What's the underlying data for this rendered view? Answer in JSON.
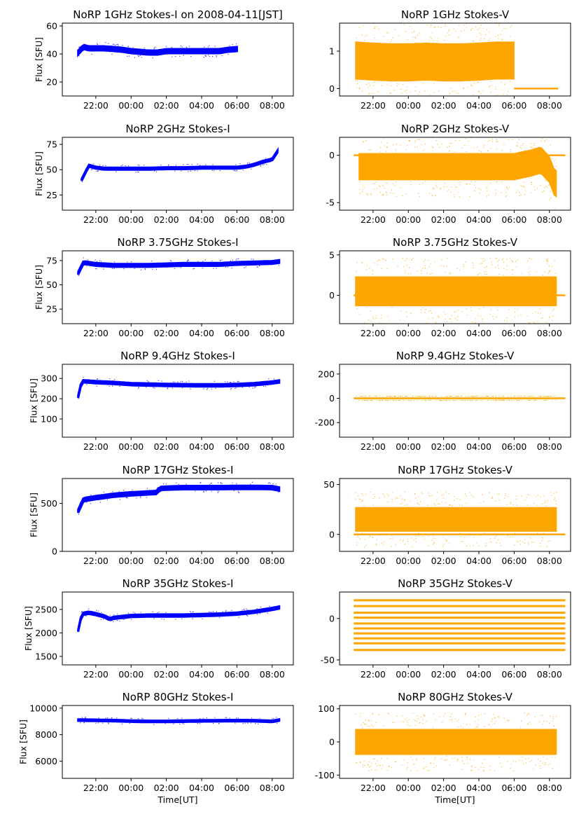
{
  "figure": {
    "xlabel": "Time[UT]",
    "ylabel": "Flux [SFU]",
    "xticks": [
      {
        "t": 22,
        "label": "22:00"
      },
      {
        "t": 24,
        "label": "00:00"
      },
      {
        "t": 26,
        "label": "02:00"
      },
      {
        "t": 28,
        "label": "04:00"
      },
      {
        "t": 30,
        "label": "06:00"
      },
      {
        "t": 32,
        "label": "08:00"
      }
    ],
    "xlim": [
      20.1,
      33.2
    ],
    "colors": {
      "stokes_i": "#0000ff",
      "stokes_v": "#ffa500"
    }
  },
  "chart_data": [
    {
      "type": "scatter",
      "title": "NoRP 1GHz Stokes-I on 2008-04-11[JST]",
      "stokes": "I",
      "ylim": [
        10,
        62
      ],
      "yticks": [
        20,
        40,
        60
      ],
      "x": [
        21.0,
        21.3,
        21.6,
        22.0,
        22.5,
        23.0,
        23.5,
        24.0,
        24.5,
        25.0,
        25.5,
        26.0,
        26.5,
        27.0,
        27.5,
        28.0,
        28.5,
        29.0,
        29.5,
        30.0
      ],
      "y": [
        41,
        45,
        44,
        44,
        44,
        43.5,
        43,
        42,
        41.5,
        41,
        41,
        42,
        42,
        42,
        42,
        42,
        42,
        42,
        43,
        43.5
      ],
      "spread": 1.5
    },
    {
      "type": "scatter",
      "title": "NoRP 1GHz Stokes-V",
      "stokes": "V",
      "ylim": [
        -0.2,
        1.75
      ],
      "yticks": [
        0,
        1
      ],
      "x": [
        21.0,
        22.0,
        23.0,
        24.0,
        25.0,
        26.0,
        27.0,
        28.0,
        29.0,
        30.0
      ],
      "y": [
        0.75,
        0.72,
        0.7,
        0.7,
        0.72,
        0.7,
        0.7,
        0.72,
        0.75,
        0.75
      ],
      "spread": 0.5,
      "xrange": [
        21.0,
        30.0
      ],
      "baseline": 0,
      "baseline_range": [
        30.0,
        32.5
      ]
    },
    {
      "type": "scatter",
      "title": "NoRP 2GHz Stokes-I",
      "stokes": "I",
      "ylim": [
        10,
        82
      ],
      "yticks": [
        25,
        50,
        75
      ],
      "x": [
        21.2,
        21.6,
        22.0,
        22.5,
        23.0,
        24.0,
        25.0,
        26.0,
        27.0,
        28.0,
        29.0,
        30.0,
        30.5,
        31.0,
        31.5,
        32.0,
        32.3
      ],
      "y": [
        40,
        54,
        52,
        51,
        51,
        51,
        51,
        51.5,
        51.5,
        52,
        52,
        52,
        53,
        55,
        58,
        60,
        68
      ],
      "spread": 1.0
    },
    {
      "type": "scatter",
      "title": "NoRP 2GHz Stokes-V",
      "stokes": "V",
      "ylim": [
        -5.8,
        1.9
      ],
      "yticks": [
        -5,
        0
      ],
      "x": [
        21.2,
        22.0,
        23.0,
        24.0,
        25.0,
        26.0,
        27.0,
        28.0,
        29.0,
        30.0,
        30.5,
        31.0,
        31.5,
        32.0,
        32.3
      ],
      "y": [
        -1.2,
        -1.2,
        -1.2,
        -1.2,
        -1.2,
        -1.2,
        -1.2,
        -1.2,
        -1.2,
        -1.2,
        -1.0,
        -0.8,
        -0.5,
        -1.5,
        -3.0
      ],
      "spread": 1.4,
      "xrange": [
        21.2,
        32.4
      ],
      "baseline": 0,
      "baseline_range": [
        20.9,
        32.9
      ]
    },
    {
      "type": "scatter",
      "title": "NoRP 3.75GHz Stokes-I",
      "stokes": "I",
      "ylim": [
        10,
        85
      ],
      "yticks": [
        25,
        50,
        75
      ],
      "x": [
        21.0,
        21.3,
        22.0,
        23.0,
        24.0,
        25.0,
        26.0,
        27.0,
        28.0,
        29.0,
        30.0,
        31.0,
        32.0,
        32.4
      ],
      "y": [
        62,
        73,
        71,
        70,
        70,
        70,
        70.5,
        71,
        71,
        71,
        72,
        72.5,
        73,
        74
      ],
      "spread": 1.5
    },
    {
      "type": "scatter",
      "title": "NoRP 3.75GHz Stokes-V",
      "stokes": "V",
      "ylim": [
        -3.5,
        5.5
      ],
      "yticks": [
        0,
        5
      ],
      "x": [
        21.0,
        32.4
      ],
      "y": [
        0.5,
        0.5
      ],
      "spread": 1.8,
      "xrange": [
        21.0,
        32.4
      ],
      "baseline": 0,
      "baseline_range": [
        20.9,
        32.9
      ]
    },
    {
      "type": "scatter",
      "title": "NoRP 9.4GHz Stokes-I",
      "stokes": "I",
      "ylim": [
        10,
        370
      ],
      "yticks": [
        100,
        200,
        300
      ],
      "x": [
        21.0,
        21.2,
        22.0,
        23.0,
        24.0,
        25.0,
        26.0,
        27.0,
        28.0,
        29.0,
        30.0,
        31.0,
        32.0,
        32.4
      ],
      "y": [
        210,
        287,
        282,
        278,
        272,
        270,
        268,
        267,
        266,
        266,
        268,
        272,
        280,
        285
      ],
      "spread": 6
    },
    {
      "type": "scatter",
      "title": "NoRP 9.4GHz Stokes-V",
      "stokes": "V",
      "ylim": [
        -320,
        280
      ],
      "yticks": [
        -200,
        0,
        200
      ],
      "x": [
        21.0,
        32.4
      ],
      "y": [
        0,
        0
      ],
      "spread": 3,
      "xrange": [
        21.0,
        32.4
      ],
      "baseline": 0,
      "baseline_range": [
        20.9,
        32.9
      ]
    },
    {
      "type": "scatter",
      "title": "NoRP 17GHz Stokes-I",
      "stokes": "I",
      "ylim": [
        0,
        760
      ],
      "yticks": [
        0,
        500
      ],
      "x": [
        21.0,
        21.3,
        22.0,
        23.0,
        24.0,
        25.0,
        25.5,
        25.6,
        26.0,
        27.0,
        28.0,
        29.0,
        30.0,
        31.0,
        32.0,
        32.4
      ],
      "y": [
        420,
        540,
        560,
        585,
        600,
        610,
        615,
        655,
        660,
        665,
        665,
        665,
        667,
        667,
        665,
        650
      ],
      "spread": 18
    },
    {
      "type": "scatter",
      "title": "NoRP 17GHz Stokes-V",
      "stokes": "V",
      "ylim": [
        -17,
        56
      ],
      "yticks": [
        0,
        50
      ],
      "x": [
        21.0,
        32.4
      ],
      "y": [
        15,
        15
      ],
      "spread": 12,
      "xrange": [
        21.0,
        32.4
      ],
      "baseline": 0,
      "baseline_range": [
        20.9,
        32.9
      ]
    },
    {
      "type": "scatter",
      "title": "NoRP 35GHz Stokes-I",
      "stokes": "I",
      "ylim": [
        1320,
        2870
      ],
      "yticks": [
        1500,
        2000,
        2500
      ],
      "x": [
        21.0,
        21.2,
        21.6,
        22.0,
        22.5,
        22.8,
        23.0,
        24.0,
        25.0,
        26.0,
        27.0,
        28.0,
        29.0,
        30.0,
        31.0,
        32.0,
        32.4
      ],
      "y": [
        2050,
        2400,
        2430,
        2400,
        2350,
        2290,
        2320,
        2360,
        2370,
        2370,
        2370,
        2380,
        2390,
        2410,
        2450,
        2510,
        2540
      ],
      "spread": 25
    },
    {
      "type": "scatter",
      "title": "NoRP 35GHz Stokes-V",
      "stokes": "V",
      "ylim": [
        -56,
        32
      ],
      "yticks": [
        -50,
        0
      ],
      "x": [
        21.0,
        32.4
      ],
      "y": [
        0,
        0
      ],
      "spread": 0,
      "xrange": [
        20.9,
        32.9
      ],
      "levels": [
        22,
        15,
        7,
        1,
        -6,
        -12,
        -18,
        -24,
        -30,
        -38
      ]
    },
    {
      "type": "scatter",
      "title": "NoRP 80GHz Stokes-I",
      "stokes": "I",
      "ylim": [
        4700,
        10200
      ],
      "yticks": [
        6000,
        8000,
        10000
      ],
      "x": [
        21.0,
        22.0,
        23.0,
        24.0,
        25.0,
        26.0,
        27.0,
        28.0,
        29.0,
        30.0,
        31.0,
        32.0,
        32.4
      ],
      "y": [
        9100,
        9080,
        9060,
        9020,
        9000,
        9000,
        9020,
        9040,
        9050,
        9060,
        9050,
        9000,
        9100
      ],
      "spread": 60
    },
    {
      "type": "scatter",
      "title": "NoRP 80GHz Stokes-V",
      "stokes": "V",
      "ylim": [
        -110,
        110
      ],
      "yticks": [
        -100,
        0,
        100
      ],
      "x": [
        21.0,
        32.4
      ],
      "y": [
        0,
        0
      ],
      "spread": 38,
      "xrange": [
        21.0,
        32.4
      ]
    }
  ]
}
